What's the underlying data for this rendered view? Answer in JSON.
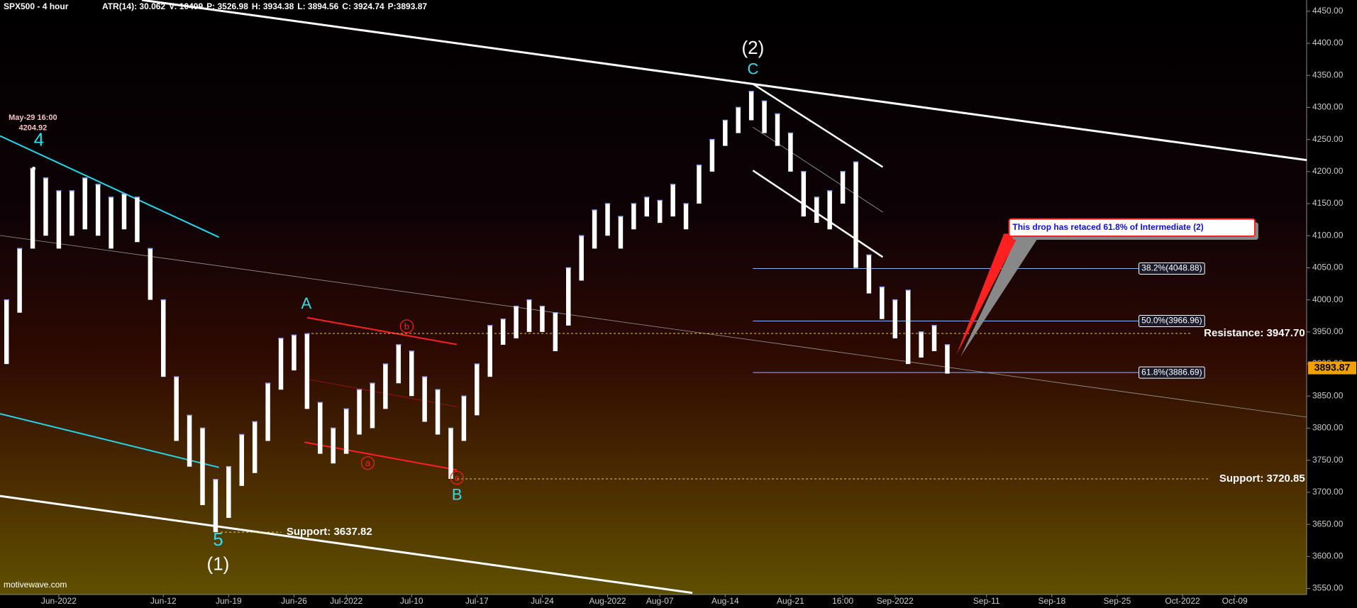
{
  "chart_data": {
    "type": "ohlc",
    "title": "SPX500 - 4 hour",
    "header_items": [
      "ATR(14): 30.062",
      "V: 10409",
      "P: 3526.98",
      "H: 3934.38",
      "L: 3894.56",
      "C: 3924.74",
      "P:3893.87"
    ],
    "watermark": "motivewave.com",
    "categories": [
      null,
      null,
      null,
      null,
      "Jun-2022",
      null,
      null,
      null,
      null,
      null,
      null,
      null,
      "Jun-12",
      null,
      null,
      null,
      null,
      "Jun-19",
      null,
      null,
      null,
      null,
      "Jun-26",
      null,
      null,
      null,
      "Jul-2022",
      null,
      null,
      null,
      null,
      "Jul-10",
      null,
      null,
      null,
      null,
      "Jul-17",
      null,
      null,
      null,
      null,
      "Jul-24",
      null,
      null,
      null,
      null,
      "Aug-2022",
      null,
      null,
      null,
      "Aug-07",
      null,
      null,
      null,
      null,
      "Aug-14",
      null,
      null,
      null,
      null,
      "Aug-21",
      null,
      null,
      null,
      "16:00",
      null,
      null,
      null,
      "Sep-2022",
      null,
      null,
      null,
      null,
      null,
      null,
      "Sep-11",
      null,
      null,
      null,
      null,
      "Sep-18",
      null,
      null,
      null,
      null,
      "Sep-25",
      null,
      null,
      null,
      null,
      "Oct-2022",
      null,
      null,
      null,
      "Oct-09",
      null,
      null,
      null,
      null,
      null
    ],
    "series": [
      {
        "color": "#ffffff",
        "high": [
          4000,
          4080,
          4205,
          4190,
          4170,
          4170,
          4190,
          4180,
          4160,
          4165,
          4160,
          4080,
          4000,
          3880,
          3820,
          3800,
          3720,
          3740,
          3790,
          3810,
          3870,
          3940,
          3945,
          3947,
          3840,
          3800,
          3830,
          3860,
          3870,
          3900,
          3930,
          3920,
          3880,
          3860,
          3800,
          3850,
          3900,
          3960,
          3970,
          3990,
          4000,
          3990,
          3980,
          4050,
          4100,
          4140,
          4150,
          4130,
          4150,
          4160,
          4155,
          4180,
          4150,
          4210,
          4250,
          4280,
          4300,
          4325,
          4310,
          4290,
          4260,
          4200,
          4160,
          4170,
          4200,
          4215,
          4070,
          4020,
          4000,
          4015,
          3950,
          3960,
          3930,
          null,
          null,
          null,
          null,
          null,
          null,
          null,
          null,
          null,
          null,
          null,
          null,
          null,
          null,
          null,
          null,
          null,
          null,
          null,
          null,
          null,
          null,
          null,
          null,
          null,
          null,
          null
        ],
        "low": [
          3900,
          3980,
          4080,
          4100,
          4080,
          4100,
          4110,
          4100,
          4080,
          4110,
          4090,
          4000,
          3880,
          3780,
          3740,
          3680,
          3637.82,
          3660,
          3710,
          3730,
          3780,
          3860,
          3890,
          3830,
          3760,
          3745,
          3760,
          3790,
          3800,
          3830,
          3870,
          3850,
          3810,
          3790,
          3720.85,
          3780,
          3820,
          3880,
          3930,
          3940,
          3950,
          3950,
          3920,
          3960,
          4030,
          4080,
          4100,
          4080,
          4110,
          4130,
          4120,
          4130,
          4110,
          4150,
          4200,
          4240,
          4260,
          4280,
          4260,
          4240,
          4200,
          4130,
          4120,
          4110,
          4150,
          4050,
          4010,
          3970,
          3940,
          3900,
          3910,
          3920,
          3885,
          null,
          null,
          null,
          null,
          null,
          null,
          null,
          null,
          null,
          null,
          null,
          null,
          null,
          null,
          null,
          null,
          null,
          null,
          null,
          null,
          null,
          null,
          null,
          null,
          null,
          null,
          null
        ]
      }
    ],
    "ylim": [
      3540.6,
      4467.5
    ],
    "yticks": [
      {
        "value": 4450,
        "label": "4450.00"
      },
      {
        "value": 4400,
        "label": "4400.00"
      },
      {
        "value": 4350,
        "label": "4350.00"
      },
      {
        "value": 4300,
        "label": "4300.00"
      },
      {
        "value": 4250,
        "label": "4250.00"
      },
      {
        "value": 4200,
        "label": "4200.00"
      },
      {
        "value": 4150,
        "label": "4150.00"
      },
      {
        "value": 4100,
        "label": "4100.00"
      },
      {
        "value": 4050,
        "label": "4050.00"
      },
      {
        "value": 4000,
        "label": "4000.00"
      },
      {
        "value": 3950,
        "label": "3950.00"
      },
      {
        "value": 3900,
        "label": "3900.00"
      },
      {
        "value": 3850,
        "label": "3850.00"
      },
      {
        "value": 3800,
        "label": "3800.00"
      },
      {
        "value": 3750,
        "label": "3750.00"
      },
      {
        "value": 3700,
        "label": "3700.00"
      },
      {
        "value": 3650,
        "label": "3650.00"
      },
      {
        "value": 3600,
        "label": "3600.00"
      },
      {
        "value": 3550,
        "label": "3550.00"
      }
    ],
    "levels": [
      {
        "value": 3947.7,
        "label": "Resistance: 3947.70"
      },
      {
        "value": 3720.85,
        "label": "Support: 3720.85"
      },
      {
        "value": 3637.82,
        "label": "Support: 3637.82"
      }
    ],
    "fib_levels": [
      {
        "value": 4048.88,
        "label": "38.2%(4048.88)"
      },
      {
        "value": 3966.96,
        "label": "50.0%(3966.96)"
      },
      {
        "value": 3886.69,
        "label": "61.8%(3886.69)"
      }
    ],
    "last_price": {
      "value": 3893.87,
      "label": "3893.87"
    },
    "peak": {
      "label": "May-29 16:00",
      "value": 4204.92,
      "value_label": "4204.92"
    },
    "waves": [
      {
        "text": "4",
        "color": "#33dde8"
      },
      {
        "text": "5",
        "color": "#33dde8"
      },
      {
        "text": "(1)",
        "color": "#ffffff"
      },
      {
        "text": "A",
        "color": "#33dde8"
      },
      {
        "text": "B",
        "color": "#33dde8"
      },
      {
        "text": "C",
        "color": "#33dde8"
      },
      {
        "text": "(2)",
        "color": "#ffffff"
      },
      {
        "text": "a",
        "color": "#ff2020"
      },
      {
        "text": "b",
        "color": "#ff2020"
      },
      {
        "text": "c",
        "color": "#ff2020"
      }
    ],
    "callout": "This drop has retaced 61.8% of Intermediate (2)"
  }
}
